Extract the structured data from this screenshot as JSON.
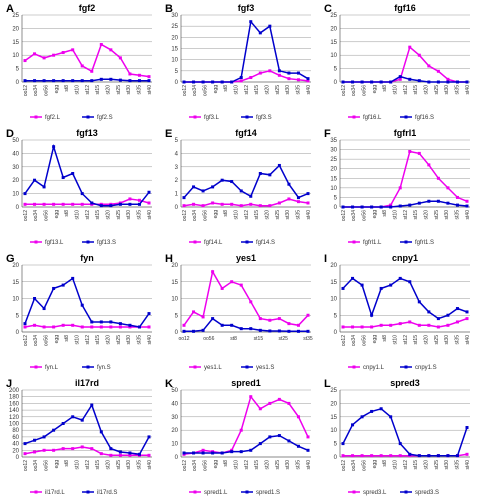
{
  "colors": {
    "L": "#ee00ee",
    "S": "#0000cc",
    "grid": "#999999",
    "axis": "#444444"
  },
  "chart_data": [
    {
      "letter": "A",
      "title": "fgf2",
      "type": "line",
      "yticks": [
        0,
        5,
        10,
        15,
        20,
        25
      ],
      "ylim": [
        0,
        25
      ],
      "xticks": [
        "oo12",
        "oo34",
        "oo56",
        "egg",
        "st8",
        "st10",
        "st12",
        "st15",
        "st20",
        "st25",
        "st30",
        "st35",
        "st40"
      ],
      "series": [
        {
          "name": "fgf2.L",
          "key": "L",
          "values": [
            8,
            10.5,
            9,
            10,
            11,
            12,
            6,
            4,
            14,
            12,
            9,
            3,
            2.5,
            2
          ]
        },
        {
          "name": "fgf2.S",
          "key": "S",
          "values": [
            0.5,
            0.5,
            0.5,
            0.5,
            0.5,
            0.5,
            0.5,
            0.5,
            1,
            1,
            0.7,
            0.5,
            0.5,
            0.5
          ]
        }
      ]
    },
    {
      "letter": "B",
      "title": "fgf3",
      "type": "line",
      "yticks": [
        0,
        5,
        10,
        15,
        20,
        25,
        30
      ],
      "ylim": [
        0,
        30
      ],
      "xticks": [
        "oo12",
        "oo34",
        "oo56",
        "egg",
        "st8",
        "st10",
        "st12",
        "st15",
        "st20",
        "st25",
        "st30",
        "st35",
        "st40"
      ],
      "series": [
        {
          "name": "fgf3.L",
          "key": "L",
          "values": [
            0,
            0,
            0,
            0,
            0,
            0,
            0.5,
            2,
            4,
            5,
            3,
            1.5,
            1,
            0.5
          ]
        },
        {
          "name": "fgf3.S",
          "key": "S",
          "values": [
            0,
            0,
            0,
            0,
            0,
            0,
            2,
            27,
            22,
            25,
            5,
            4,
            4,
            1.5
          ]
        }
      ]
    },
    {
      "letter": "C",
      "title": "fgf16",
      "type": "line",
      "yticks": [
        0,
        5,
        10,
        15,
        20,
        25
      ],
      "ylim": [
        0,
        25
      ],
      "xticks": [
        "oo12",
        "oo34",
        "oo56",
        "egg",
        "st8",
        "st10",
        "st12",
        "st15",
        "st20",
        "st25",
        "st30",
        "st35",
        "st40"
      ],
      "series": [
        {
          "name": "fgf16.L",
          "key": "L",
          "values": [
            0,
            0,
            0,
            0,
            0,
            0,
            1,
            13,
            10,
            6,
            4,
            1,
            0,
            0
          ]
        },
        {
          "name": "fgf16.S",
          "key": "S",
          "values": [
            0,
            0,
            0,
            0,
            0,
            0,
            2,
            1,
            0.5,
            0,
            0,
            0,
            0,
            0
          ]
        }
      ]
    },
    {
      "letter": "D",
      "title": "fgf13",
      "type": "line",
      "yticks": [
        0,
        10,
        20,
        30,
        40,
        50
      ],
      "ylim": [
        0,
        50
      ],
      "xticks": [
        "oo12",
        "oo34",
        "oo56",
        "egg",
        "st8",
        "st10",
        "st12",
        "st15",
        "st20",
        "st25",
        "st30",
        "st35",
        "st40"
      ],
      "series": [
        {
          "name": "fgf13.L",
          "key": "L",
          "values": [
            2,
            2,
            2,
            2,
            2,
            2,
            2,
            2,
            2,
            2,
            3,
            6,
            5,
            3
          ]
        },
        {
          "name": "fgf13.S",
          "key": "S",
          "values": [
            10,
            20,
            15,
            45,
            22,
            25,
            10,
            3,
            1,
            1,
            2,
            2,
            2,
            11
          ]
        }
      ]
    },
    {
      "letter": "E",
      "title": "fgf14",
      "type": "line",
      "yticks": [
        0,
        1,
        2,
        3,
        4,
        5
      ],
      "ylim": [
        0,
        5
      ],
      "xticks": [
        "oo12",
        "oo34",
        "oo56",
        "egg",
        "st8",
        "st10",
        "st12",
        "st15",
        "st20",
        "st25",
        "st30",
        "st35",
        "st40"
      ],
      "series": [
        {
          "name": "fgf14.L",
          "key": "L",
          "values": [
            0.1,
            0.2,
            0.1,
            0.3,
            0.2,
            0.2,
            0.1,
            0.2,
            0.1,
            0.1,
            0.3,
            0.6,
            0.4,
            0.3
          ]
        },
        {
          "name": "fgf14.S",
          "key": "S",
          "values": [
            0.7,
            1.5,
            1.2,
            1.5,
            2,
            1.9,
            1.2,
            0.8,
            2.5,
            2.4,
            3.1,
            1.7,
            0.7,
            1
          ]
        }
      ]
    },
    {
      "letter": "F",
      "title": "fgfrl1",
      "type": "line",
      "yticks": [
        0,
        5,
        10,
        15,
        20,
        25,
        30,
        35
      ],
      "ylim": [
        0,
        35
      ],
      "xticks": [
        "oo12",
        "oo34",
        "oo56",
        "egg",
        "st8",
        "st10",
        "st12",
        "st15",
        "st20",
        "st25",
        "st30",
        "st35",
        "st40"
      ],
      "series": [
        {
          "name": "fgfrl1.L",
          "key": "L",
          "values": [
            0,
            0,
            0,
            0,
            0,
            1,
            10,
            29,
            28,
            22,
            15,
            10,
            5,
            3
          ]
        },
        {
          "name": "fgfrl1.S",
          "key": "S",
          "values": [
            0,
            0,
            0,
            0,
            0,
            0,
            0.5,
            1,
            2,
            3,
            3,
            2,
            1,
            0.5
          ]
        }
      ]
    },
    {
      "letter": "G",
      "title": "fyn",
      "type": "line",
      "yticks": [
        0,
        5,
        10,
        15,
        20
      ],
      "ylim": [
        0,
        20
      ],
      "xticks": [
        "oo12",
        "oo34",
        "oo56",
        "egg",
        "st8",
        "st10",
        "st12",
        "st15",
        "st20",
        "st25",
        "st30",
        "st35",
        "st40"
      ],
      "series": [
        {
          "name": "fyn.L",
          "key": "L",
          "values": [
            1.5,
            2,
            1.5,
            1.5,
            2,
            2,
            1.5,
            1.5,
            1.5,
            1.5,
            1.5,
            1.5,
            1.5,
            1.5
          ]
        },
        {
          "name": "fyn.S",
          "key": "S",
          "values": [
            2.5,
            10,
            7,
            13,
            14,
            16,
            8,
            3,
            3,
            3,
            2.5,
            2,
            1.5,
            5.5
          ]
        }
      ]
    },
    {
      "letter": "H",
      "title": "yes1",
      "type": "line",
      "yticks": [
        0,
        5,
        10,
        15,
        20
      ],
      "ylim": [
        0,
        20
      ],
      "xticks": [
        "oo12",
        "oo56",
        "st8",
        "st15",
        "st25",
        "st35"
      ],
      "series": [
        {
          "name": "yes1.L",
          "key": "L",
          "values": [
            2,
            6,
            4.5,
            18,
            13,
            15,
            14,
            9,
            4,
            3.5,
            4,
            2.5,
            2,
            5
          ]
        },
        {
          "name": "yes1.S",
          "key": "S",
          "values": [
            0.2,
            0.2,
            0.5,
            4,
            2,
            2,
            1,
            1,
            0.5,
            0.3,
            0.3,
            0.2,
            0.2,
            0.2
          ]
        }
      ]
    },
    {
      "letter": "I",
      "title": "cnpy1",
      "type": "line",
      "yticks": [
        0,
        5,
        10,
        15,
        20
      ],
      "ylim": [
        0,
        20
      ],
      "xticks": [
        "oo12",
        "oo34",
        "oo56",
        "egg",
        "st8",
        "st10",
        "st12",
        "st15",
        "st20",
        "st25",
        "st30",
        "st35",
        "st40"
      ],
      "series": [
        {
          "name": "cnpy1.L",
          "key": "L",
          "values": [
            1.5,
            1.5,
            1.5,
            1.5,
            2,
            2,
            2.5,
            3,
            2,
            2,
            1.5,
            2,
            3,
            4
          ]
        },
        {
          "name": "cnpy1.S",
          "key": "S",
          "values": [
            13,
            16,
            14,
            5,
            13,
            14,
            16,
            15,
            9,
            6,
            4,
            5,
            7,
            6
          ]
        }
      ]
    },
    {
      "letter": "J",
      "title": "il17rd",
      "type": "line",
      "yticks": [
        0,
        20,
        40,
        60,
        80,
        100,
        120,
        140,
        160,
        180,
        200
      ],
      "ylim": [
        0,
        200
      ],
      "xticks": [
        "oo12",
        "oo34",
        "oo56",
        "egg",
        "st8",
        "st10",
        "st12",
        "st15",
        "st20",
        "st25",
        "st30",
        "st35",
        "st40"
      ],
      "series": [
        {
          "name": "il17rd.L",
          "key": "L",
          "values": [
            10,
            15,
            20,
            20,
            25,
            25,
            30,
            25,
            10,
            5,
            5,
            5,
            5,
            5
          ]
        },
        {
          "name": "il17rd.S",
          "key": "S",
          "values": [
            40,
            50,
            60,
            80,
            100,
            120,
            110,
            155,
            75,
            25,
            15,
            12,
            8,
            60
          ]
        }
      ]
    },
    {
      "letter": "K",
      "title": "spred1",
      "type": "line",
      "yticks": [
        0,
        10,
        20,
        30,
        40,
        50
      ],
      "ylim": [
        0,
        50
      ],
      "xticks": [
        "oo12",
        "oo34",
        "oo56",
        "egg",
        "st8",
        "st10",
        "st12",
        "st15",
        "st20",
        "st25",
        "st30",
        "st35",
        "st40"
      ],
      "series": [
        {
          "name": "spred1.L",
          "key": "L",
          "values": [
            2,
            3,
            5,
            4,
            3,
            5,
            20,
            45,
            36,
            40,
            43,
            40,
            30,
            15
          ]
        },
        {
          "name": "spred1.S",
          "key": "S",
          "values": [
            3,
            3,
            3,
            3,
            3,
            4,
            4,
            5,
            10,
            15,
            16,
            12,
            8,
            5
          ]
        }
      ]
    },
    {
      "letter": "L",
      "title": "spred3",
      "type": "line",
      "yticks": [
        0,
        5,
        10,
        15,
        20,
        25
      ],
      "ylim": [
        0,
        25
      ],
      "xticks": [
        "oo12",
        "oo34",
        "oo56",
        "egg",
        "st8",
        "st10",
        "st12",
        "st15",
        "st20",
        "st25",
        "st30",
        "st35",
        "st40"
      ],
      "series": [
        {
          "name": "spred3.L",
          "key": "L",
          "values": [
            0.5,
            0.5,
            0.5,
            0.5,
            0.5,
            0.5,
            0.5,
            0.5,
            0.5,
            0.5,
            0.5,
            0.5,
            0.5,
            1
          ]
        },
        {
          "name": "spred3.S",
          "key": "S",
          "values": [
            5,
            12,
            15,
            17,
            18,
            15,
            5,
            1,
            0.5,
            0.5,
            0.5,
            0.5,
            0.5,
            11
          ]
        }
      ]
    }
  ]
}
